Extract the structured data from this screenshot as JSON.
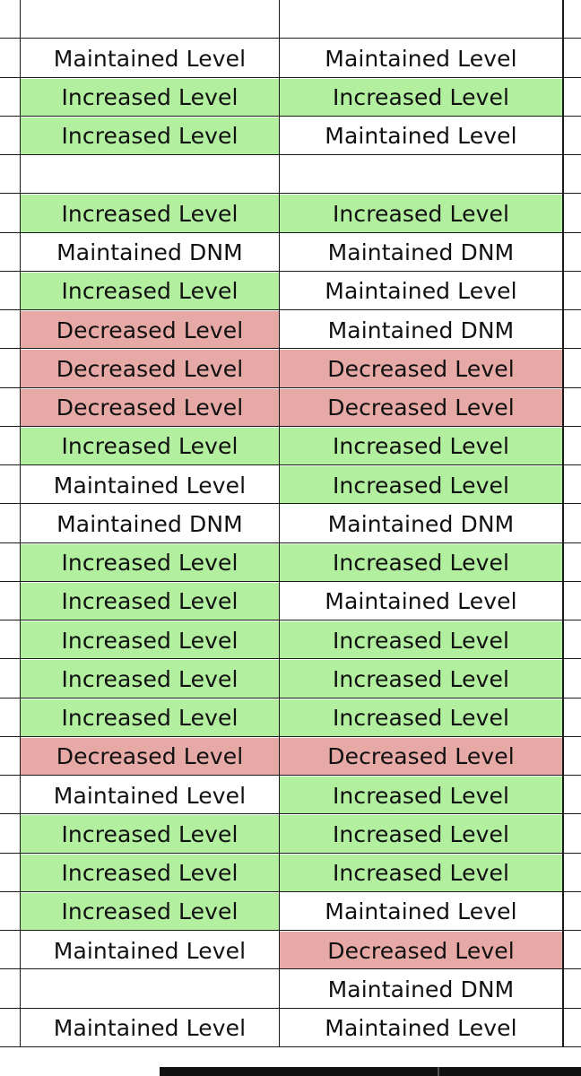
{
  "sheet": {
    "rows": [
      {
        "a": "",
        "b": "",
        "a_fill": "none",
        "b_fill": "none"
      },
      {
        "a": "Maintained Level",
        "b": "Maintained Level",
        "a_fill": "none",
        "b_fill": "none"
      },
      {
        "a": "Increased Level",
        "b": "Increased Level",
        "a_fill": "green",
        "b_fill": "green"
      },
      {
        "a": "Increased Level",
        "b": "Maintained Level",
        "a_fill": "green",
        "b_fill": "none"
      },
      {
        "a": "",
        "b": "",
        "a_fill": "none",
        "b_fill": "none"
      },
      {
        "a": "Increased Level",
        "b": "Increased Level",
        "a_fill": "green",
        "b_fill": "green"
      },
      {
        "a": "Maintained DNM",
        "b": "Maintained DNM",
        "a_fill": "none",
        "b_fill": "none"
      },
      {
        "a": "Increased Level",
        "b": "Maintained Level",
        "a_fill": "green",
        "b_fill": "none"
      },
      {
        "a": "Decreased Level",
        "b": "Maintained DNM",
        "a_fill": "red",
        "b_fill": "none"
      },
      {
        "a": "Decreased Level",
        "b": "Decreased Level",
        "a_fill": "red",
        "b_fill": "red"
      },
      {
        "a": "Decreased Level",
        "b": "Decreased Level",
        "a_fill": "red",
        "b_fill": "red"
      },
      {
        "a": "Increased Level",
        "b": "Increased Level",
        "a_fill": "green",
        "b_fill": "green"
      },
      {
        "a": "Maintained Level",
        "b": "Increased Level",
        "a_fill": "none",
        "b_fill": "green"
      },
      {
        "a": "Maintained DNM",
        "b": "Maintained DNM",
        "a_fill": "none",
        "b_fill": "none"
      },
      {
        "a": "Increased Level",
        "b": "Increased Level",
        "a_fill": "green",
        "b_fill": "green"
      },
      {
        "a": "Increased Level",
        "b": "Maintained Level",
        "a_fill": "green",
        "b_fill": "none"
      },
      {
        "a": "Increased Level",
        "b": "Increased Level",
        "a_fill": "green",
        "b_fill": "green"
      },
      {
        "a": "Increased Level",
        "b": "Increased Level",
        "a_fill": "green",
        "b_fill": "green"
      },
      {
        "a": "Increased Level",
        "b": "Increased Level",
        "a_fill": "green",
        "b_fill": "green"
      },
      {
        "a": "Decreased Level",
        "b": "Decreased Level",
        "a_fill": "red",
        "b_fill": "red"
      },
      {
        "a": "Maintained Level",
        "b": "Increased Level",
        "a_fill": "none",
        "b_fill": "green"
      },
      {
        "a": "Increased Level",
        "b": "Increased Level",
        "a_fill": "green",
        "b_fill": "green"
      },
      {
        "a": "Increased Level",
        "b": "Increased Level",
        "a_fill": "green",
        "b_fill": "green"
      },
      {
        "a": "Increased Level",
        "b": "Maintained Level",
        "a_fill": "green",
        "b_fill": "none"
      },
      {
        "a": "Maintained Level",
        "b": "Decreased Level",
        "a_fill": "none",
        "b_fill": "red"
      },
      {
        "a": "",
        "b": "Maintained DNM",
        "a_fill": "none",
        "b_fill": "none"
      },
      {
        "a": "Maintained Level",
        "b": "Maintained Level",
        "a_fill": "none",
        "b_fill": "none"
      }
    ]
  },
  "colors": {
    "increased_fill": "#b2ef9f",
    "decreased_fill": "#e6a9a6",
    "grid_line": "#1a1a1a"
  }
}
